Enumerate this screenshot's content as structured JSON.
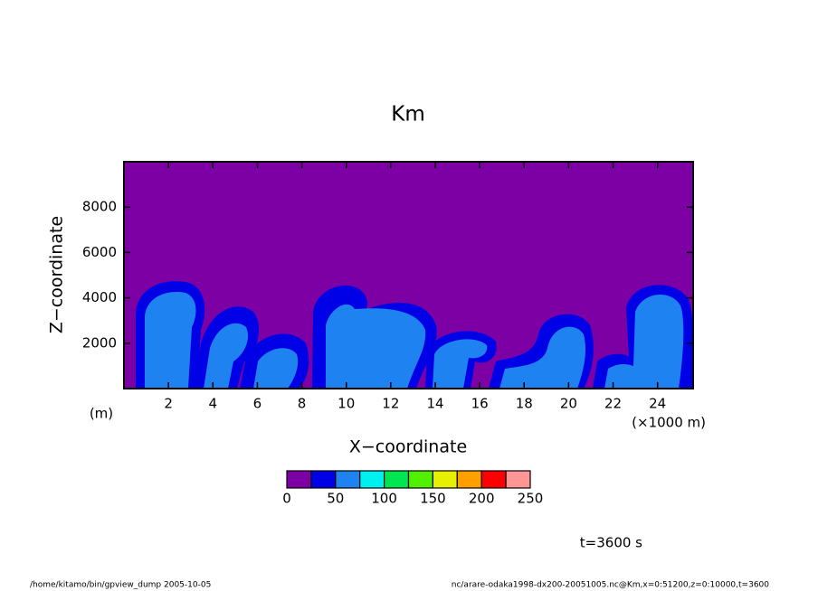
{
  "chart_data": {
    "type": "contour",
    "title": "Km",
    "x_label": "X−coordinate",
    "y_label": "Z−coordinate",
    "y_unit": "(m)",
    "x_unit": "(×1000 m)",
    "xlim": [
      0,
      25600
    ],
    "ylim": [
      0,
      10000
    ],
    "xticks": [
      {
        "value": 2000,
        "label": "2"
      },
      {
        "value": 4000,
        "label": "4"
      },
      {
        "value": 6000,
        "label": "6"
      },
      {
        "value": 8000,
        "label": "8"
      },
      {
        "value": 10000,
        "label": "10"
      },
      {
        "value": 12000,
        "label": "12"
      },
      {
        "value": 14000,
        "label": "14"
      },
      {
        "value": 16000,
        "label": "16"
      },
      {
        "value": 18000,
        "label": "18"
      },
      {
        "value": 20000,
        "label": "20"
      },
      {
        "value": 22000,
        "label": "22"
      },
      {
        "value": 24000,
        "label": "24"
      }
    ],
    "yticks": [
      2000,
      4000,
      6000,
      8000
    ],
    "levels": [
      0,
      25,
      50,
      75,
      100,
      125,
      150,
      175,
      200,
      225,
      250
    ],
    "colors": [
      "#7d00a5",
      "#0000e6",
      "#1e82f0",
      "#00f0f0",
      "#00e650",
      "#50f000",
      "#e6f000",
      "#ffa000",
      "#ff0000",
      "#ff9696"
    ],
    "colorbar_ticks": [
      0,
      50,
      100,
      150,
      200,
      250
    ],
    "time_label": "t=3600 s",
    "footer_left": "/home/kitamo/bin/gpview_dump  2005-10-05",
    "footer_right": "nc/arare-odaka1998-dx200-20051005.nc@Km,x=0:51200,z=0:10000,t=3600"
  }
}
